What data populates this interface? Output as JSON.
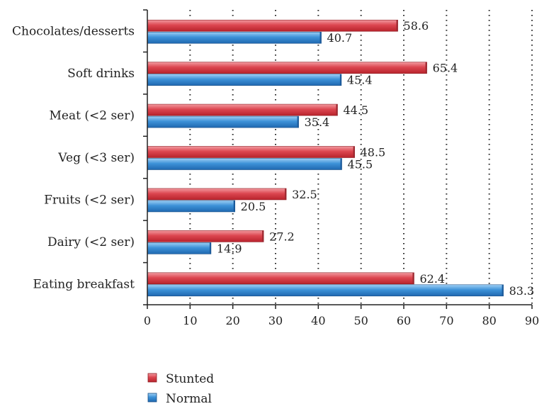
{
  "chart_data": {
    "type": "bar",
    "orientation": "horizontal",
    "categories": [
      "Chocolates/desserts",
      "Soft drinks",
      "Meat (<2 ser)",
      "Veg (<3 ser)",
      "Fruits (<2 ser)",
      "Dairy (<2 ser)",
      "Eating breakfast"
    ],
    "series": [
      {
        "name": "Stunted",
        "values": [
          58.6,
          65.4,
          44.5,
          48.5,
          32.5,
          27.2,
          62.4
        ],
        "color": "#d9414a"
      },
      {
        "name": "Normal",
        "values": [
          40.7,
          45.4,
          35.4,
          45.5,
          20.5,
          14.9,
          83.3
        ],
        "color": "#3a8fd6"
      }
    ],
    "xlim": [
      0,
      90
    ],
    "xticks": [
      0,
      10,
      20,
      30,
      40,
      50,
      60,
      70,
      80,
      90
    ],
    "grid": "vertical dotted",
    "legend_position": "bottom-left",
    "title": "",
    "xlabel": "",
    "ylabel": ""
  }
}
